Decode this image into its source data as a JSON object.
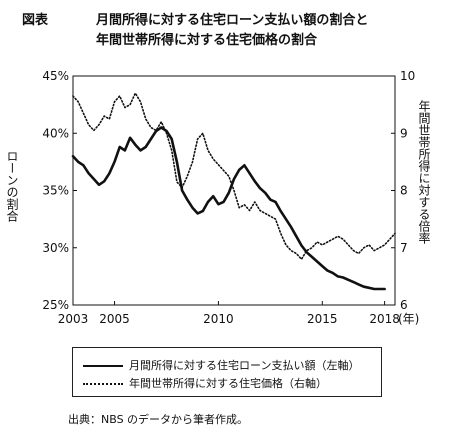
{
  "header": {
    "figure_label": "図表",
    "title_line1": "月間所得に対する住宅ローン支払い額の割合と",
    "title_line2": "年間世帯所得に対する住宅価格の割合"
  },
  "source_note": "出典：NBS のデータから筆者作成。",
  "chart_data": {
    "type": "line",
    "x_unit_label": "(年)",
    "x_ticks": [
      2003,
      2005,
      2010,
      2015,
      2018
    ],
    "xlim": [
      2003,
      2018.5
    ],
    "left_axis": {
      "label": "ローンの割合",
      "ylim": [
        25,
        45
      ],
      "ticks": [
        25,
        30,
        35,
        40,
        45
      ],
      "tick_labels": [
        "25%",
        "30%",
        "35%",
        "40%",
        "45%"
      ]
    },
    "right_axis": {
      "label": "年間世帯所得に対する倍率",
      "ylim": [
        6,
        10
      ],
      "ticks": [
        6,
        7,
        8,
        9,
        10
      ],
      "tick_labels": [
        "6",
        "7",
        "8",
        "9",
        "10"
      ]
    },
    "series": [
      {
        "name": "月間所得に対する住宅ローン支払い額（左軸）",
        "axis": "left",
        "style": "solid",
        "x": [
          2003.0,
          2003.25,
          2003.5,
          2003.75,
          2004.0,
          2004.25,
          2004.5,
          2004.75,
          2005.0,
          2005.25,
          2005.5,
          2005.75,
          2006.0,
          2006.25,
          2006.5,
          2006.75,
          2007.0,
          2007.25,
          2007.5,
          2007.75,
          2008.0,
          2008.25,
          2008.5,
          2008.75,
          2009.0,
          2009.25,
          2009.5,
          2009.75,
          2010.0,
          2010.25,
          2010.5,
          2010.75,
          2011.0,
          2011.25,
          2011.5,
          2011.75,
          2012.0,
          2012.25,
          2012.5,
          2012.75,
          2013.0,
          2013.25,
          2013.5,
          2013.75,
          2014.0,
          2014.25,
          2014.5,
          2014.75,
          2015.0,
          2015.25,
          2015.5,
          2015.75,
          2016.0,
          2016.25,
          2016.5,
          2016.75,
          2017.0,
          2017.25,
          2017.5,
          2017.75,
          2018.0
        ],
        "values": [
          38.0,
          37.5,
          37.2,
          36.5,
          36.0,
          35.5,
          35.8,
          36.5,
          37.5,
          38.8,
          38.5,
          39.6,
          39.0,
          38.5,
          38.8,
          39.5,
          40.2,
          40.5,
          40.2,
          39.5,
          37.5,
          35.0,
          34.2,
          33.5,
          33.0,
          33.2,
          34.0,
          34.5,
          33.8,
          34.0,
          34.8,
          36.0,
          36.8,
          37.2,
          36.5,
          35.8,
          35.2,
          34.8,
          34.2,
          34.0,
          33.2,
          32.5,
          31.8,
          31.0,
          30.2,
          29.6,
          29.2,
          28.8,
          28.4,
          28.0,
          27.8,
          27.5,
          27.4,
          27.2,
          27.0,
          26.8,
          26.6,
          26.5,
          26.4,
          26.4,
          26.4
        ]
      },
      {
        "name": "年間世帯所得に対する住宅価格（右軸）",
        "axis": "right",
        "style": "dotted",
        "x": [
          2003.0,
          2003.25,
          2003.5,
          2003.75,
          2004.0,
          2004.25,
          2004.5,
          2004.75,
          2005.0,
          2005.25,
          2005.5,
          2005.75,
          2006.0,
          2006.25,
          2006.5,
          2006.75,
          2007.0,
          2007.25,
          2007.5,
          2007.75,
          2008.0,
          2008.25,
          2008.5,
          2008.75,
          2009.0,
          2009.25,
          2009.5,
          2009.75,
          2010.0,
          2010.25,
          2010.5,
          2010.75,
          2011.0,
          2011.25,
          2011.5,
          2011.75,
          2012.0,
          2012.25,
          2012.5,
          2012.75,
          2013.0,
          2013.25,
          2013.5,
          2013.75,
          2014.0,
          2014.25,
          2014.5,
          2014.75,
          2015.0,
          2015.25,
          2015.5,
          2015.75,
          2016.0,
          2016.25,
          2016.5,
          2016.75,
          2017.0,
          2017.25,
          2017.5,
          2017.75,
          2018.0,
          2018.25,
          2018.5
        ],
        "values": [
          9.65,
          9.55,
          9.35,
          9.15,
          9.05,
          9.15,
          9.3,
          9.25,
          9.55,
          9.65,
          9.45,
          9.5,
          9.7,
          9.55,
          9.25,
          9.1,
          9.05,
          9.2,
          9.0,
          8.7,
          8.15,
          8.05,
          8.25,
          8.5,
          8.9,
          9.0,
          8.7,
          8.55,
          8.45,
          8.35,
          8.25,
          8.0,
          7.7,
          7.75,
          7.65,
          7.8,
          7.65,
          7.6,
          7.55,
          7.5,
          7.25,
          7.05,
          6.95,
          6.9,
          6.8,
          6.95,
          7.0,
          7.1,
          7.05,
          7.1,
          7.15,
          7.2,
          7.15,
          7.05,
          6.95,
          6.9,
          7.0,
          7.05,
          6.95,
          7.0,
          7.05,
          7.15,
          7.25
        ]
      }
    ]
  }
}
